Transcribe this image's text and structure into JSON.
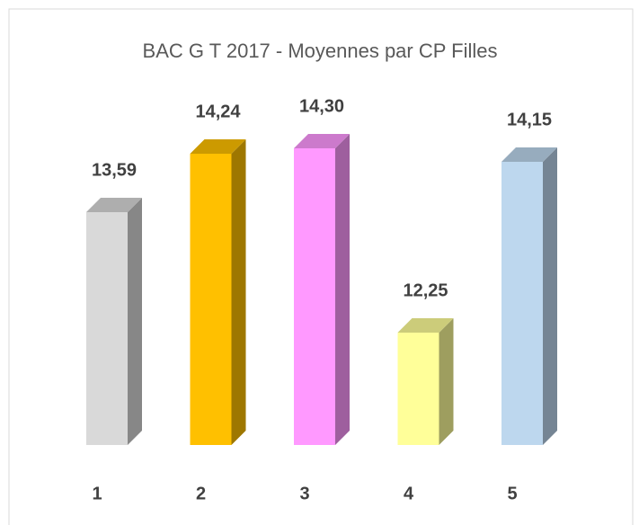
{
  "chart_data": {
    "type": "bar3d",
    "title": "BAC G T 2017 - Moyennes par CP Filles",
    "categories": [
      "1",
      "2",
      "3",
      "4",
      "5"
    ],
    "values": [
      13.59,
      14.24,
      14.3,
      12.25,
      14.15
    ],
    "value_labels": [
      "13,59",
      "14,24",
      "14,30",
      "12,25",
      "14,15"
    ],
    "colors": [
      "#d9d9d9",
      "#ffc000",
      "#ff99ff",
      "#ffff99",
      "#bdd7ee"
    ],
    "ylim": [
      11,
      15
    ]
  }
}
